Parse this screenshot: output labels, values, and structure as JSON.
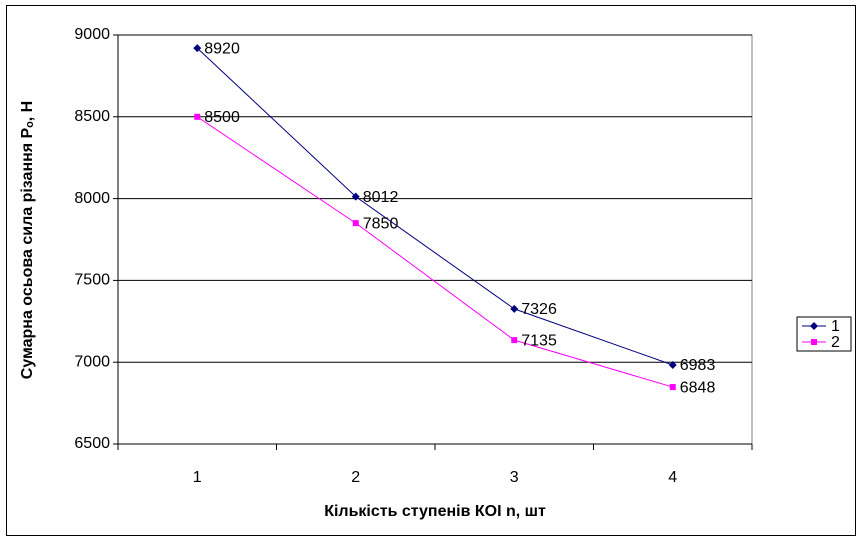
{
  "chart_data": {
    "type": "line",
    "xlabel": "Кількість ступенів КОІ n, шт",
    "ylabel": "Сумарна осьова сила різання Рₒ, Н",
    "categories": [
      "1",
      "2",
      "3",
      "4"
    ],
    "series": [
      {
        "name": "1",
        "color": "#000080",
        "marker": "diamond",
        "values": [
          8920,
          8012,
          7326,
          6983
        ]
      },
      {
        "name": "2",
        "color": "#ff00ff",
        "marker": "square",
        "values": [
          8500,
          7850,
          7135,
          6848
        ]
      }
    ],
    "ylim": [
      6500,
      9000
    ],
    "yticks": [
      6500,
      7000,
      7500,
      8000,
      8500,
      9000
    ],
    "grid": true,
    "legend": "right",
    "data_labels": true
  }
}
